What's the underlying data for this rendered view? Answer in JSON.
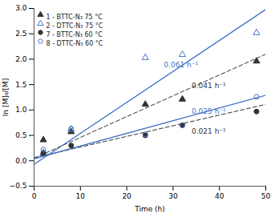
{
  "chart_data": {
    "type": "scatter",
    "xlabel": "Time (h)",
    "ylabel": "ln [M]₀/[M]",
    "xlim": [
      0,
      50
    ],
    "ylim": [
      -0.5,
      3.0
    ],
    "xticks": [
      0,
      10,
      20,
      30,
      40,
      50
    ],
    "yticks": [
      -0.5,
      0.0,
      0.5,
      1.0,
      1.5,
      2.0,
      2.5,
      3.0
    ],
    "legend": "upper left",
    "series": [
      {
        "name": "1 - BTTC-N₃ 75 °C",
        "color": "#333333",
        "marker": "triangle",
        "line_style": "dashed",
        "x": [
          2,
          8,
          24,
          32,
          48
        ],
        "values": [
          0.41,
          0.57,
          1.11,
          1.21,
          1.96
        ],
        "fit": {
          "x": [
            0,
            50
          ],
          "values": [
            0.05,
            2.1
          ]
        }
      },
      {
        "name": "2 - DTTC-N₃ 75 °C",
        "color": "#4472c4",
        "marker": "triangle_open",
        "line_style": "solid",
        "x": [
          2,
          8,
          24,
          32,
          48
        ],
        "values": [
          0.16,
          0.62,
          2.03,
          2.09,
          2.52
        ],
        "fit": {
          "x": [
            0,
            50
          ],
          "values": [
            -0.07,
            2.98
          ]
        }
      },
      {
        "name": "7 - BTTC-N₃ 60 °C",
        "color": "#333333",
        "marker": "circle",
        "line_style": "dashed",
        "x": [
          2,
          8,
          24,
          32,
          48
        ],
        "values": [
          0.15,
          0.3,
          0.5,
          0.7,
          0.97
        ],
        "fit": {
          "x": [
            0,
            50
          ],
          "values": [
            0.06,
            1.11
          ]
        }
      },
      {
        "name": "8 - DTTC-N₃ 60 °C",
        "color": "#4472c4",
        "marker": "circle_open",
        "line_style": "solid",
        "x": [
          2,
          8,
          24,
          32,
          48
        ],
        "values": [
          0.22,
          0.63,
          0.52,
          0.7,
          1.26
        ],
        "fit": {
          "x": [
            0,
            50
          ],
          "values": [
            0.04,
            1.29
          ]
        }
      }
    ],
    "annotations": [
      {
        "text": "0.061 h⁻¹",
        "x": 28,
        "y": 1.88,
        "color": "#4472c4"
      },
      {
        "text": "0.041 h⁻¹",
        "x": 34,
        "y": 1.48,
        "color": "#333333"
      },
      {
        "text": "0.025 h⁻¹",
        "x": 34,
        "y": 0.98,
        "color": "#4472c4"
      },
      {
        "text": "0.021 h⁻¹",
        "x": 34,
        "y": 0.58,
        "color": "#333333"
      }
    ]
  }
}
